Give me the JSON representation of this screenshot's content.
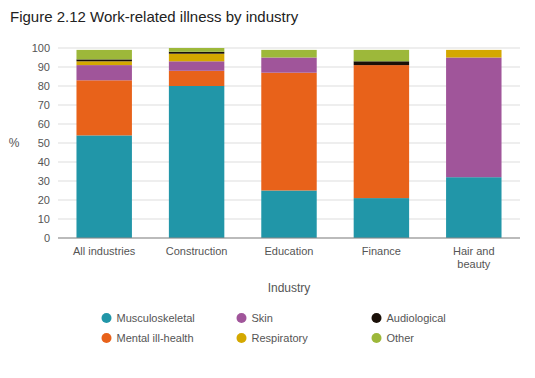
{
  "chart_data": {
    "type": "bar",
    "stacked": true,
    "title": "Figure 2.12  Work-related illness by industry",
    "categories": [
      "All industries",
      "Construction",
      "Education",
      "Finance",
      "Hair and\nbeauty"
    ],
    "x_label": "Industry",
    "y_label": "%",
    "ylim": [
      0,
      100
    ],
    "yticks": [
      0,
      10,
      20,
      30,
      40,
      50,
      60,
      70,
      80,
      90,
      100
    ],
    "grid": true,
    "legend": "bottom",
    "series": [
      {
        "name": "Musculoskeletal",
        "color": "#2196A8",
        "values": [
          54,
          80,
          25,
          21,
          32
        ]
      },
      {
        "name": "Mental ill-health",
        "color": "#E8621A",
        "values": [
          29,
          8,
          62,
          70,
          0
        ]
      },
      {
        "name": "Skin",
        "color": "#A0559A",
        "values": [
          8,
          5,
          8,
          0,
          63
        ]
      },
      {
        "name": "Respiratory",
        "color": "#D4A800",
        "values": [
          2,
          4,
          0,
          0,
          4
        ]
      },
      {
        "name": "Audiological",
        "color": "#1A1008",
        "values": [
          1,
          1,
          0,
          2,
          0
        ]
      },
      {
        "name": "Other",
        "color": "#9DB83A",
        "values": [
          5,
          2,
          4,
          6,
          0
        ]
      }
    ]
  }
}
